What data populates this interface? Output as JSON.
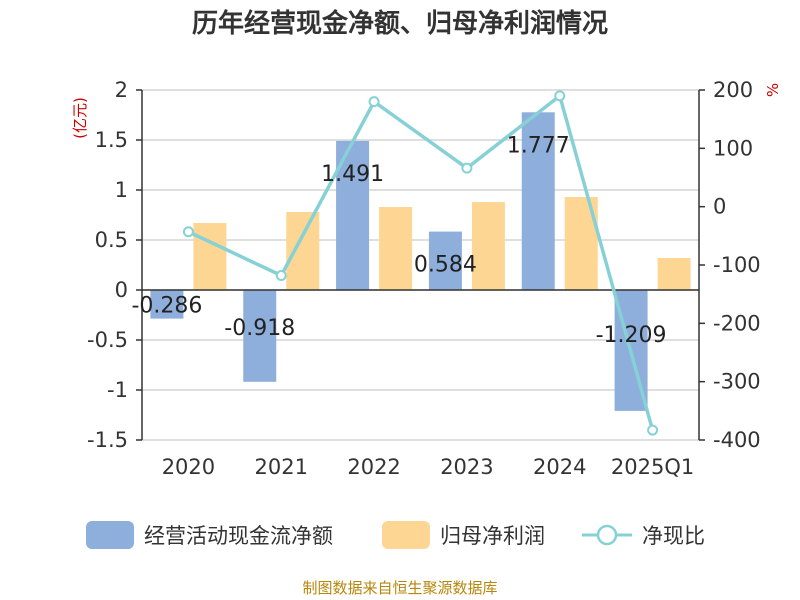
{
  "chart_data": {
    "type": "bar",
    "title": "历年经营现金净额、归母净利润情况",
    "categories": [
      "2020",
      "2021",
      "2022",
      "2023",
      "2024",
      "2025Q1"
    ],
    "y_left": {
      "unit": "(亿元)",
      "ylim": [
        -1.5,
        2
      ],
      "ticks": [
        "2",
        "1.5",
        "1",
        "0.5",
        "0",
        "-0.5",
        "-1",
        "-1.5"
      ]
    },
    "y_right": {
      "unit": "%",
      "ylim": [
        -400,
        200
      ],
      "ticks": [
        "200",
        "100",
        "0",
        "-100",
        "-200",
        "-300",
        "-400"
      ]
    },
    "series": [
      {
        "name": "经营活动现金流净额",
        "type": "bar",
        "axis": "left",
        "color": "#8eaedb",
        "values": [
          -0.286,
          -0.918,
          1.491,
          0.584,
          1.777,
          -1.209
        ],
        "labels": [
          "-0.286",
          "-0.918",
          "1.491",
          "0.584",
          "1.777",
          "-1.209"
        ]
      },
      {
        "name": "归母净利润",
        "type": "bar",
        "axis": "left",
        "color": "#fdd693",
        "values": [
          0.67,
          0.78,
          0.83,
          0.88,
          0.93,
          0.32
        ]
      },
      {
        "name": "净现比",
        "type": "line",
        "axis": "right",
        "color": "#86d1d6",
        "values": [
          -43,
          -118,
          180,
          66,
          190,
          -383
        ]
      }
    ],
    "grid": true,
    "legend": "bottom"
  },
  "footer": {
    "source": "制图数据来自恒生聚源数据库"
  }
}
